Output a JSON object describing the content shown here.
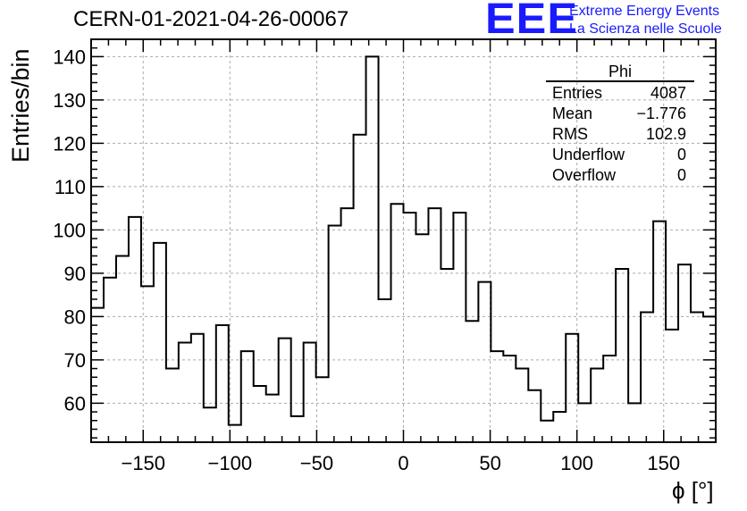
{
  "header": {
    "title": "CERN-01-2021-04-26-00067",
    "logo_mark": "EEE",
    "logo_line1": "Extreme Energy Events",
    "logo_line2": "La Scienza nelle Scuole",
    "logo_color": "#1a1aff"
  },
  "stats_box": {
    "name": "Phi",
    "rows": [
      {
        "label": "Entries",
        "value": "4087"
      },
      {
        "label": "Mean",
        "value": "−1.776"
      },
      {
        "label": "RMS",
        "value": "102.9"
      },
      {
        "label": "Underflow",
        "value": "0"
      },
      {
        "label": "Overflow",
        "value": "0"
      }
    ]
  },
  "chart_data": {
    "type": "bar",
    "style": "step-histogram",
    "title": "CERN-01-2021-04-26-00067",
    "xlabel": "ϕ [°]",
    "ylabel": "Entries/bin",
    "xlim": [
      -180,
      180
    ],
    "ylim": [
      51,
      144
    ],
    "bin_width": 7.2,
    "x_ticks": [
      -150,
      -100,
      -50,
      0,
      50,
      100,
      150
    ],
    "x_tick_labels": [
      "−150",
      "−100",
      "−50",
      "0",
      "50",
      "100",
      "150"
    ],
    "y_ticks": [
      60,
      70,
      80,
      90,
      100,
      110,
      120,
      130,
      140
    ],
    "y_tick_labels": [
      "60",
      "70",
      "80",
      "90",
      "100",
      "110",
      "120",
      "130",
      "140"
    ],
    "grid": true,
    "values": [
      82,
      89,
      94,
      103,
      87,
      97,
      68,
      74,
      76,
      59,
      78,
      55,
      72,
      64,
      62,
      75,
      57,
      74,
      66,
      101,
      105,
      122,
      140,
      84,
      106,
      104,
      99,
      105,
      91,
      104,
      79,
      88,
      72,
      71,
      68,
      63,
      56,
      58,
      76,
      60,
      68,
      71,
      91,
      60,
      81,
      102,
      77,
      92,
      81,
      80
    ]
  }
}
